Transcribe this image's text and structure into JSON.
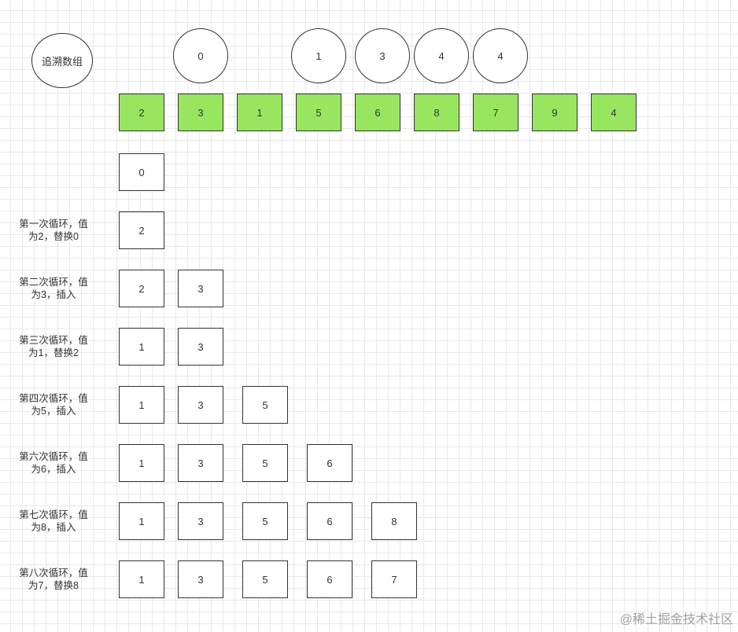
{
  "legend_circle": "追溯数组",
  "backtrack": [
    "0",
    "1",
    "3",
    "4",
    "4"
  ],
  "input_array": [
    "2",
    "3",
    "1",
    "5",
    "6",
    "8",
    "7",
    "9",
    "4"
  ],
  "colors": {
    "input_fill": "#98e65f",
    "border": "#333333"
  },
  "initial_row": [
    "0"
  ],
  "steps": [
    {
      "label": [
        "第一次循环，值",
        "为2，替换0"
      ],
      "values": [
        "2"
      ]
    },
    {
      "label": [
        "第二次循环，值",
        "为3，插入"
      ],
      "values": [
        "2",
        "3"
      ]
    },
    {
      "label": [
        "第三次循环，值",
        "为1，替换2"
      ],
      "values": [
        "1",
        "3"
      ]
    },
    {
      "label": [
        "第四次循环，值",
        "为5，插入"
      ],
      "values": [
        "1",
        "3",
        "5"
      ]
    },
    {
      "label": [
        "第六次循环，值",
        "为6，插入"
      ],
      "values": [
        "1",
        "3",
        "5",
        "6"
      ]
    },
    {
      "label": [
        "第七次循环，值",
        "为8，插入"
      ],
      "values": [
        "1",
        "3",
        "5",
        "6",
        "8"
      ]
    },
    {
      "label": [
        "第八次循环，值",
        "为7，替换8"
      ],
      "values": [
        "1",
        "3",
        "5",
        "6",
        "7"
      ]
    }
  ],
  "watermark": "@稀土掘金技术社区"
}
